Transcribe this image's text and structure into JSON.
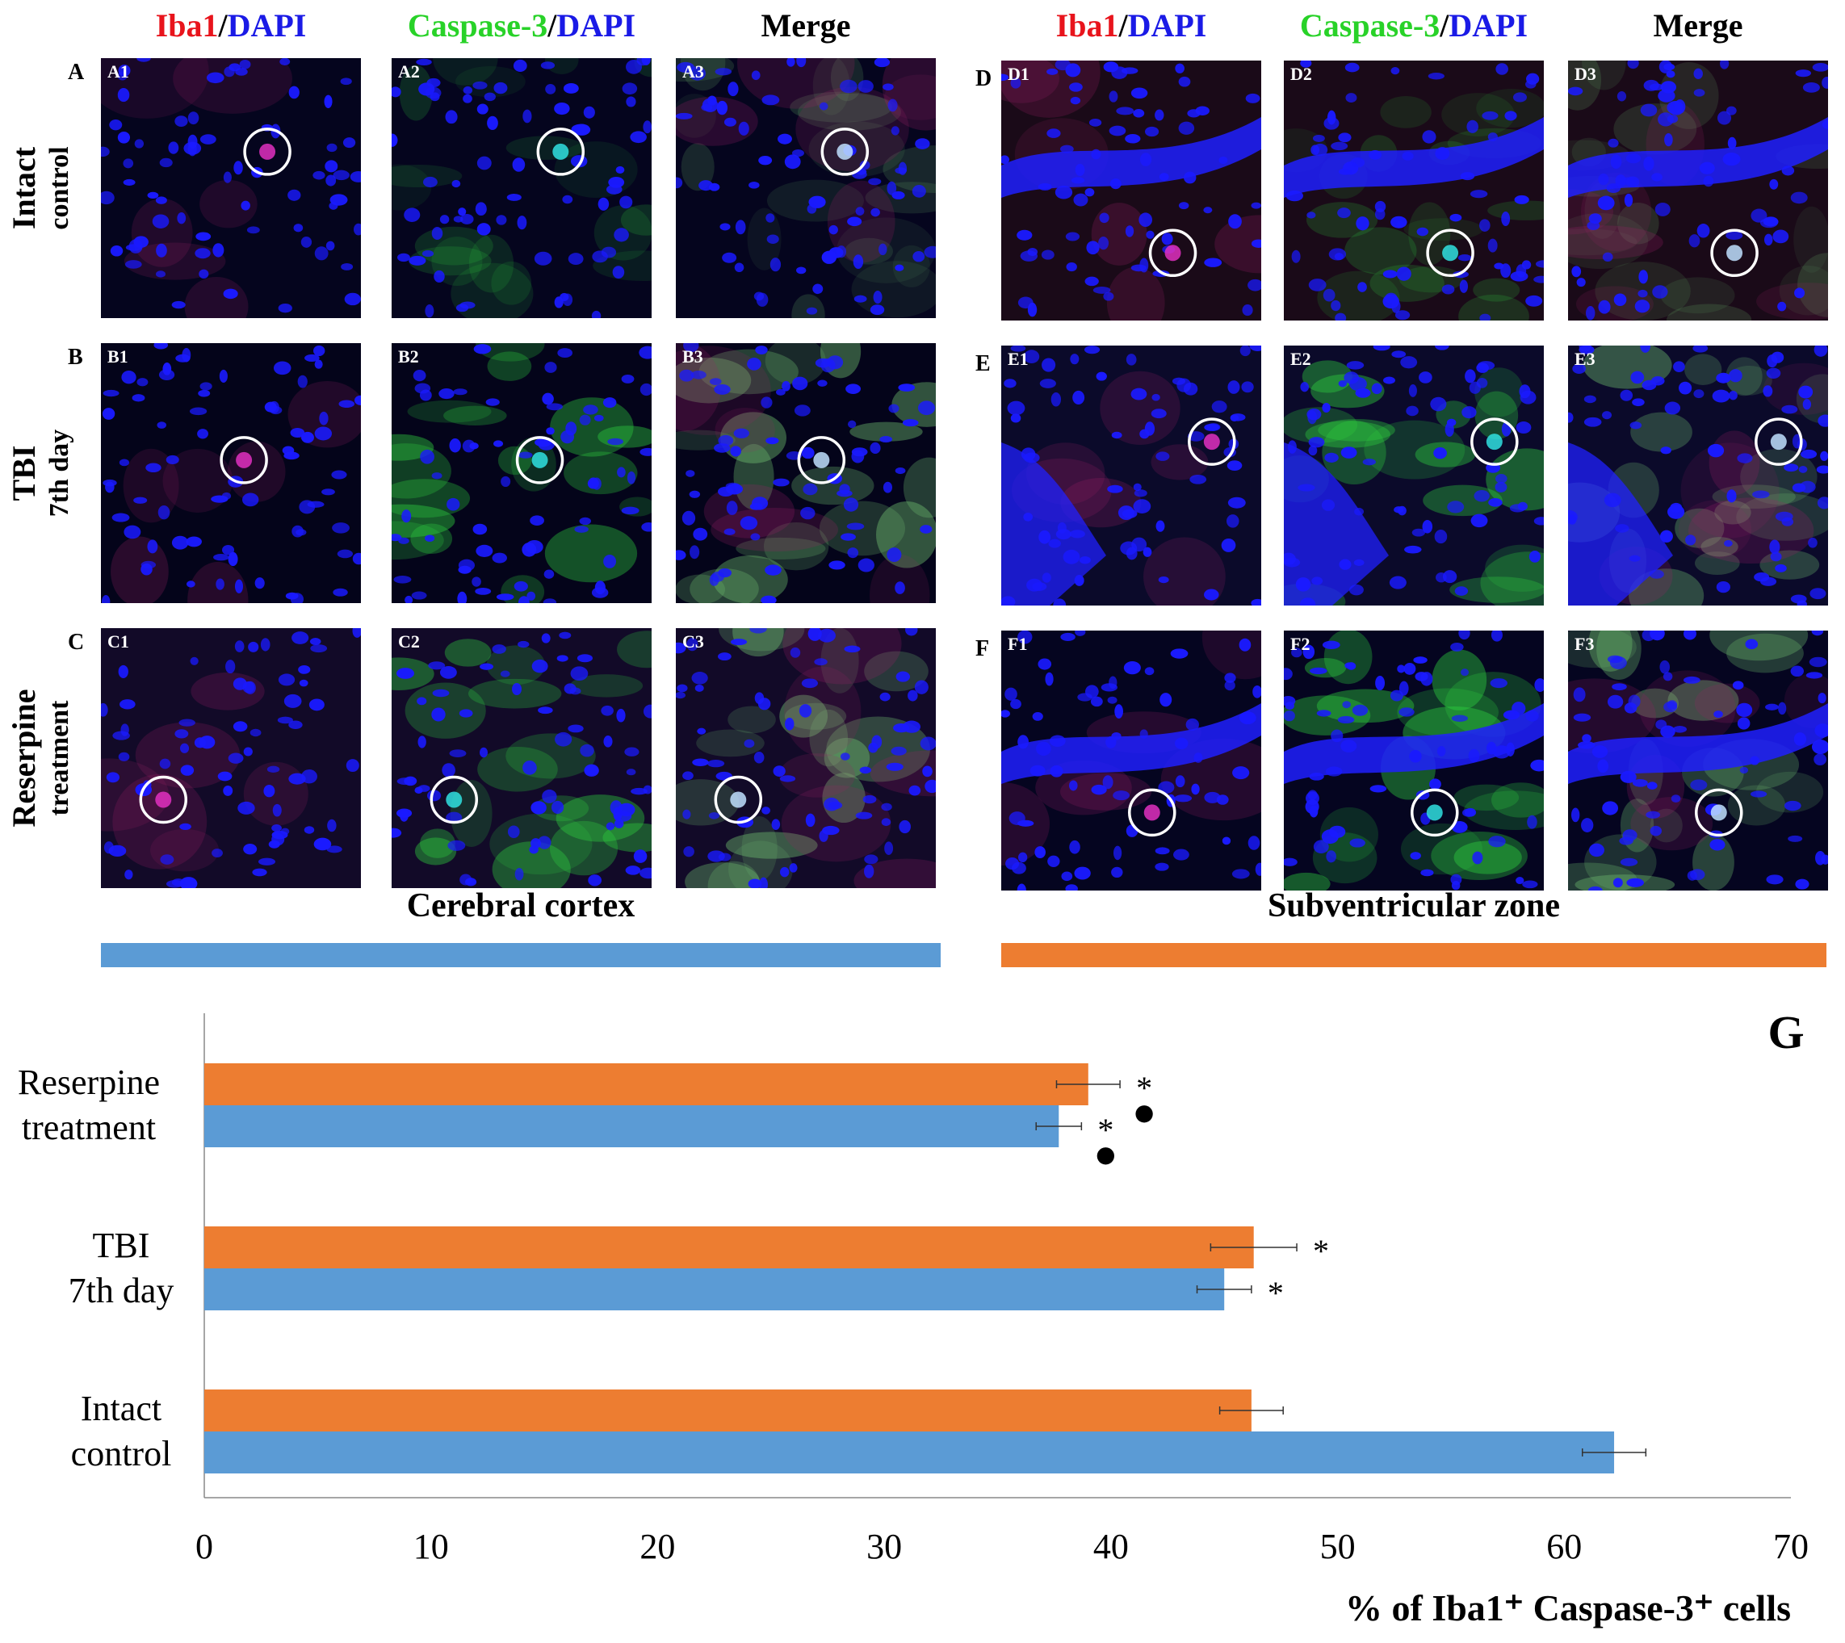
{
  "header": {
    "cortex_cols": [
      {
        "a": "Iba1",
        "sep": "/",
        "b": "DAPI",
        "style": "red"
      },
      {
        "a": "Caspase-3",
        "sep": "/",
        "b": "DAPI",
        "style": "green"
      },
      {
        "a": "Merge",
        "sep": "",
        "b": "",
        "style": "black"
      }
    ],
    "svz_cols": [
      {
        "a": "Iba1",
        "sep": "/",
        "b": "DAPI",
        "style": "red"
      },
      {
        "a": "Caspase-3",
        "sep": "/",
        "b": "DAPI",
        "style": "green"
      },
      {
        "a": "Merge",
        "sep": "",
        "b": "",
        "style": "black"
      }
    ]
  },
  "rows": [
    {
      "letter": "A",
      "svz_letter": "D",
      "label": "Intact",
      "sub": "control"
    },
    {
      "letter": "B",
      "svz_letter": "E",
      "label": "TBI",
      "sub": "7th day"
    },
    {
      "letter": "C",
      "svz_letter": "F",
      "label": "Reserpine",
      "sub": "treatment"
    }
  ],
  "panels": {
    "cortex": [
      [
        "A1",
        "A2",
        "A3"
      ],
      [
        "B1",
        "B2",
        "B3"
      ],
      [
        "C1",
        "C2",
        "C3"
      ]
    ],
    "svz": [
      [
        "D1",
        "D2",
        "D3"
      ],
      [
        "E1",
        "E2",
        "E3"
      ],
      [
        "F1",
        "F2",
        "F3"
      ]
    ]
  },
  "regions": {
    "cortex": "Cerebral cortex",
    "svz": "Subventricular zone"
  },
  "colors": {
    "cortex": "#5b9bd5",
    "svz": "#ed7d31",
    "dapi": "#1a1aff",
    "iba1": "#ff1a8c",
    "caspase": "#33dd55"
  },
  "chart_data": {
    "type": "bar",
    "orientation": "horizontal",
    "panel_letter": "G",
    "categories": [
      [
        "Intact",
        "control"
      ],
      [
        "TBI",
        "7th day"
      ],
      [
        "Reserpine",
        "treatment"
      ]
    ],
    "series": [
      {
        "region": "cortex",
        "values": [
          62.2,
          45.0,
          37.7
        ],
        "errors": [
          1.4,
          1.2,
          1.0
        ]
      },
      {
        "region": "svz",
        "values": [
          46.2,
          46.3,
          39.0
        ],
        "errors": [
          1.4,
          1.9,
          1.4
        ]
      }
    ],
    "annotations": [
      [
        "",
        ""
      ],
      [
        "*",
        "*"
      ],
      [
        "* ●",
        "* ●"
      ]
    ],
    "xlim": [
      0,
      70
    ],
    "xticks": [
      "0",
      "10",
      "20",
      "30",
      "40",
      "50",
      "60",
      "70"
    ],
    "xlabel": "% of Iba1⁺ Caspase-3⁺ cells",
    "grid": false
  }
}
